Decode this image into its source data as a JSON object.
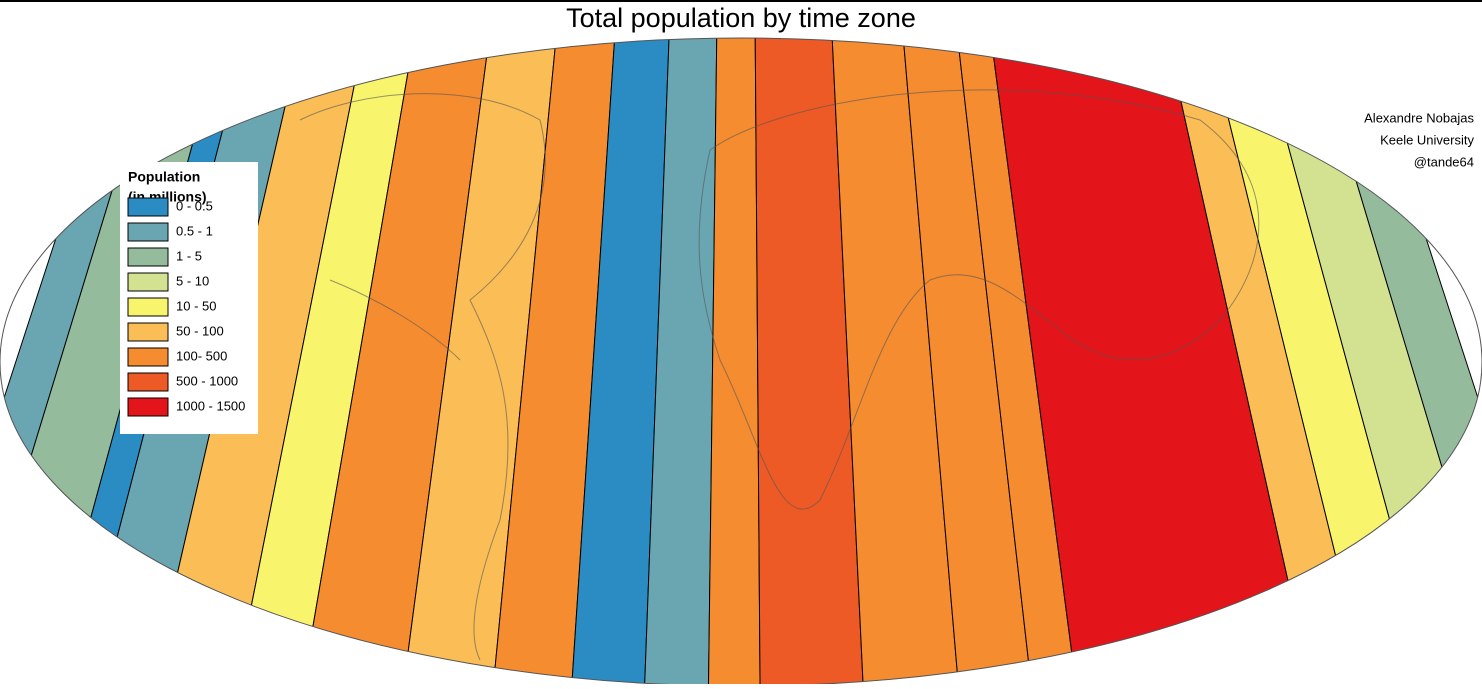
{
  "title": "Total population by time zone",
  "legend": {
    "title": [
      "Population",
      "(in millions)"
    ],
    "items": [
      {
        "label": "0 - 0.5",
        "color": "#2b8cc4"
      },
      {
        "label": "0.5 - 1",
        "color": "#6aa6b2"
      },
      {
        "label": "1 - 5",
        "color": "#94bc9c"
      },
      {
        "label": "5 - 10",
        "color": "#d2e291"
      },
      {
        "label": "10 - 50",
        "color": "#f8f46c"
      },
      {
        "label": "50 - 100",
        "color": "#fbbd55"
      },
      {
        "label": "100- 500",
        "color": "#f58c30"
      },
      {
        "label": "500 - 1000",
        "color": "#ee5a25"
      },
      {
        "label": "1000 - 1500",
        "color": "#e3151b"
      }
    ]
  },
  "credits": [
    "Alexandre Nobajas",
    "Keele University",
    "@tande64"
  ]
}
